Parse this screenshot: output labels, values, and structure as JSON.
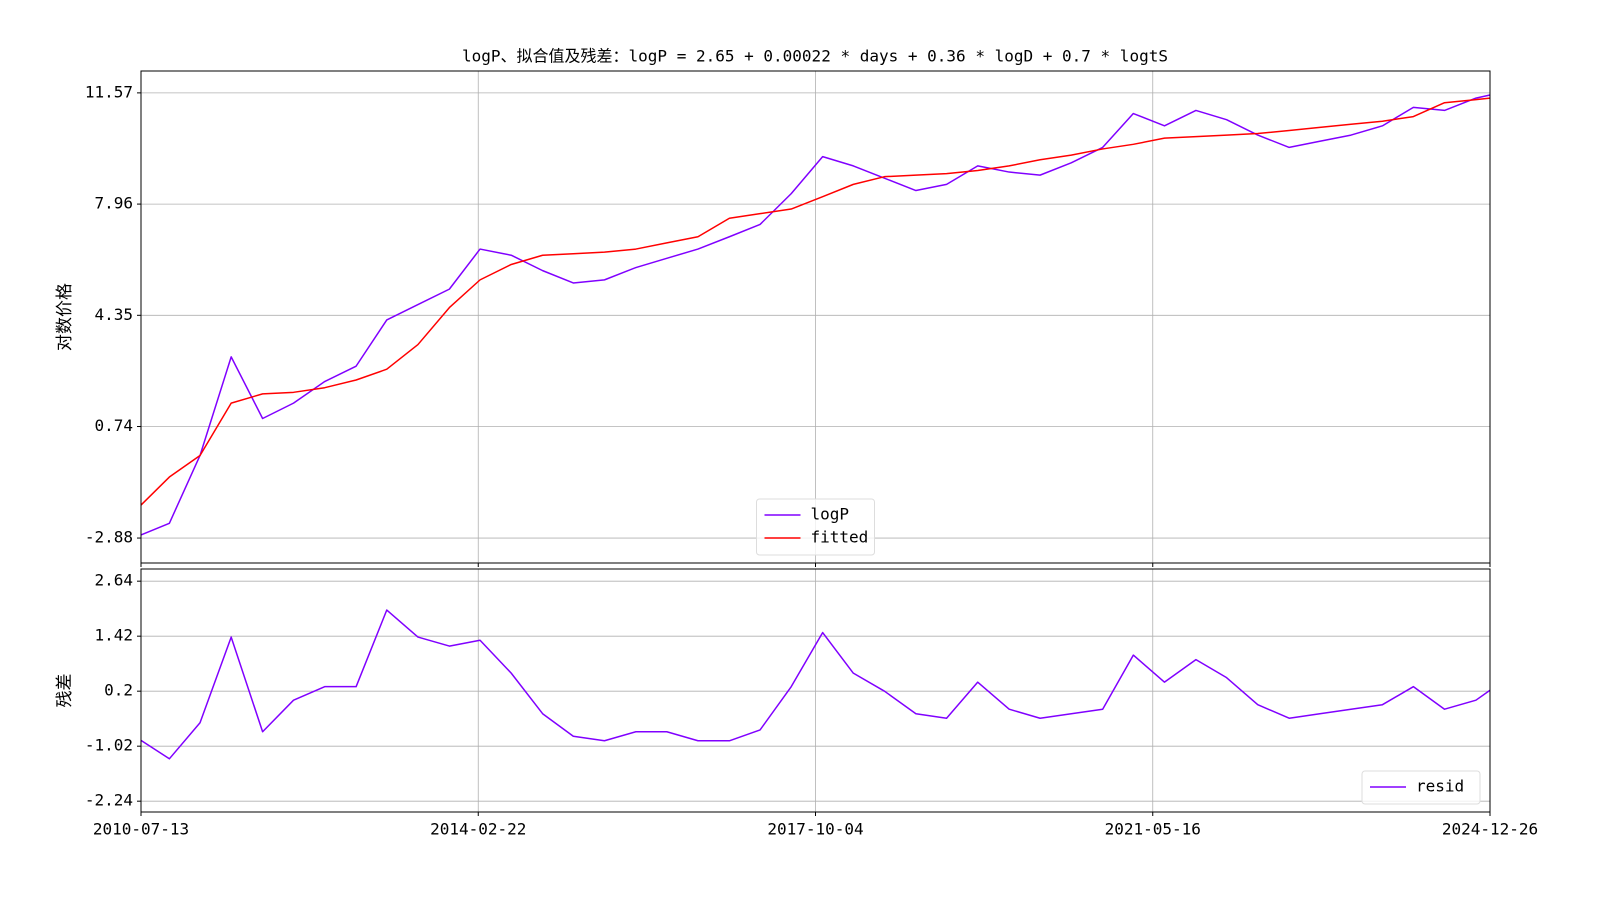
{
  "chart_data": [
    {
      "type": "line",
      "title": "logP、拟合值及残差：logP = 2.65 + 0.00022 * days + 0.36 * logD + 0.7 * logtS",
      "y_label": "对数价格",
      "x": [
        "2010-07-13",
        "2010-11-01",
        "2011-03-01",
        "2011-07-01",
        "2011-11-01",
        "2012-03-01",
        "2012-07-01",
        "2012-11-01",
        "2013-03-01",
        "2013-07-01",
        "2013-11-01",
        "2014-03-01",
        "2014-07-01",
        "2014-11-01",
        "2015-03-01",
        "2015-07-01",
        "2015-11-01",
        "2016-03-01",
        "2016-07-01",
        "2016-11-01",
        "2017-03-01",
        "2017-07-01",
        "2017-11-01",
        "2018-03-01",
        "2018-07-01",
        "2018-11-01",
        "2019-03-01",
        "2019-07-01",
        "2019-11-01",
        "2020-03-01",
        "2020-07-01",
        "2020-11-01",
        "2021-03-01",
        "2021-07-01",
        "2021-11-01",
        "2022-03-01",
        "2022-07-01",
        "2022-11-01",
        "2023-03-01",
        "2023-07-01",
        "2023-11-01",
        "2024-03-01",
        "2024-07-01",
        "2024-11-01",
        "2024-12-26"
      ],
      "xlim": [
        "2010-07-13",
        "2024-12-26"
      ],
      "xticks": [
        "2010-07-13",
        "2014-02-22",
        "2017-10-04",
        "2021-05-16",
        "2024-12-26"
      ],
      "ylim": [
        -3.69,
        12.28
      ],
      "yticks": [
        -2.88,
        0.74,
        4.35,
        7.96,
        11.57
      ],
      "grid": true,
      "legend": "lower center",
      "series": [
        {
          "name": "logP",
          "color": "#8000ff",
          "values": [
            -2.78,
            -2.4,
            -0.2,
            3.0,
            1.0,
            1.5,
            2.2,
            2.7,
            4.2,
            4.7,
            5.2,
            6.5,
            6.3,
            5.8,
            5.4,
            5.5,
            5.9,
            6.2,
            6.5,
            6.9,
            7.3,
            8.3,
            9.5,
            9.2,
            8.8,
            8.4,
            8.6,
            9.2,
            9.0,
            8.9,
            9.3,
            9.8,
            10.9,
            10.5,
            11.0,
            10.7,
            10.2,
            9.8,
            10.0,
            10.2,
            10.5,
            11.1,
            11.0,
            11.4,
            11.5
          ]
        },
        {
          "name": "fitted",
          "color": "#ff0000",
          "values": [
            -1.81,
            -0.9,
            -0.2,
            1.5,
            1.8,
            1.85,
            2.0,
            2.25,
            2.6,
            3.4,
            4.6,
            5.5,
            6.0,
            6.3,
            6.35,
            6.4,
            6.5,
            6.7,
            6.9,
            7.5,
            7.65,
            7.8,
            8.2,
            8.6,
            8.85,
            8.9,
            8.95,
            9.05,
            9.2,
            9.4,
            9.55,
            9.75,
            9.9,
            10.1,
            10.15,
            10.2,
            10.25,
            10.35,
            10.45,
            10.55,
            10.65,
            10.8,
            11.25,
            11.35,
            11.4
          ]
        }
      ]
    },
    {
      "type": "line",
      "y_label": "残差",
      "x": [
        "2010-07-13",
        "2010-11-01",
        "2011-03-01",
        "2011-07-01",
        "2011-11-01",
        "2012-03-01",
        "2012-07-01",
        "2012-11-01",
        "2013-03-01",
        "2013-07-01",
        "2013-11-01",
        "2014-03-01",
        "2014-07-01",
        "2014-11-01",
        "2015-03-01",
        "2015-07-01",
        "2015-11-01",
        "2016-03-01",
        "2016-07-01",
        "2016-11-01",
        "2017-03-01",
        "2017-07-01",
        "2017-11-01",
        "2018-03-01",
        "2018-07-01",
        "2018-11-01",
        "2019-03-01",
        "2019-07-01",
        "2019-11-01",
        "2020-03-01",
        "2020-07-01",
        "2020-11-01",
        "2021-03-01",
        "2021-07-01",
        "2021-11-01",
        "2022-03-01",
        "2022-07-01",
        "2022-11-01",
        "2023-03-01",
        "2023-07-01",
        "2023-11-01",
        "2024-03-01",
        "2024-07-01",
        "2024-11-01",
        "2024-12-26"
      ],
      "xlim": [
        "2010-07-13",
        "2024-12-26"
      ],
      "xticks": [
        "2010-07-13",
        "2014-02-22",
        "2017-10-04",
        "2021-05-16",
        "2024-12-26"
      ],
      "ylim": [
        -2.48,
        2.91
      ],
      "yticks": [
        -2.24,
        -1.02,
        0.2,
        1.42,
        2.64
      ],
      "grid": true,
      "legend": "lower right",
      "series": [
        {
          "name": "resid",
          "color": "#8000ff",
          "values": [
            -0.89,
            -1.3,
            -0.5,
            1.4,
            -0.7,
            0.0,
            0.3,
            0.3,
            2.0,
            1.4,
            1.2,
            1.33,
            0.6,
            -0.3,
            -0.8,
            -0.9,
            -0.7,
            -0.7,
            -0.9,
            -0.9,
            -0.66,
            0.3,
            1.5,
            0.6,
            0.2,
            -0.3,
            -0.4,
            0.4,
            -0.2,
            -0.4,
            -0.3,
            -0.2,
            1.0,
            0.4,
            0.9,
            0.5,
            -0.1,
            -0.4,
            -0.3,
            -0.2,
            -0.1,
            0.3,
            -0.2,
            0.0,
            0.22
          ]
        }
      ]
    }
  ]
}
